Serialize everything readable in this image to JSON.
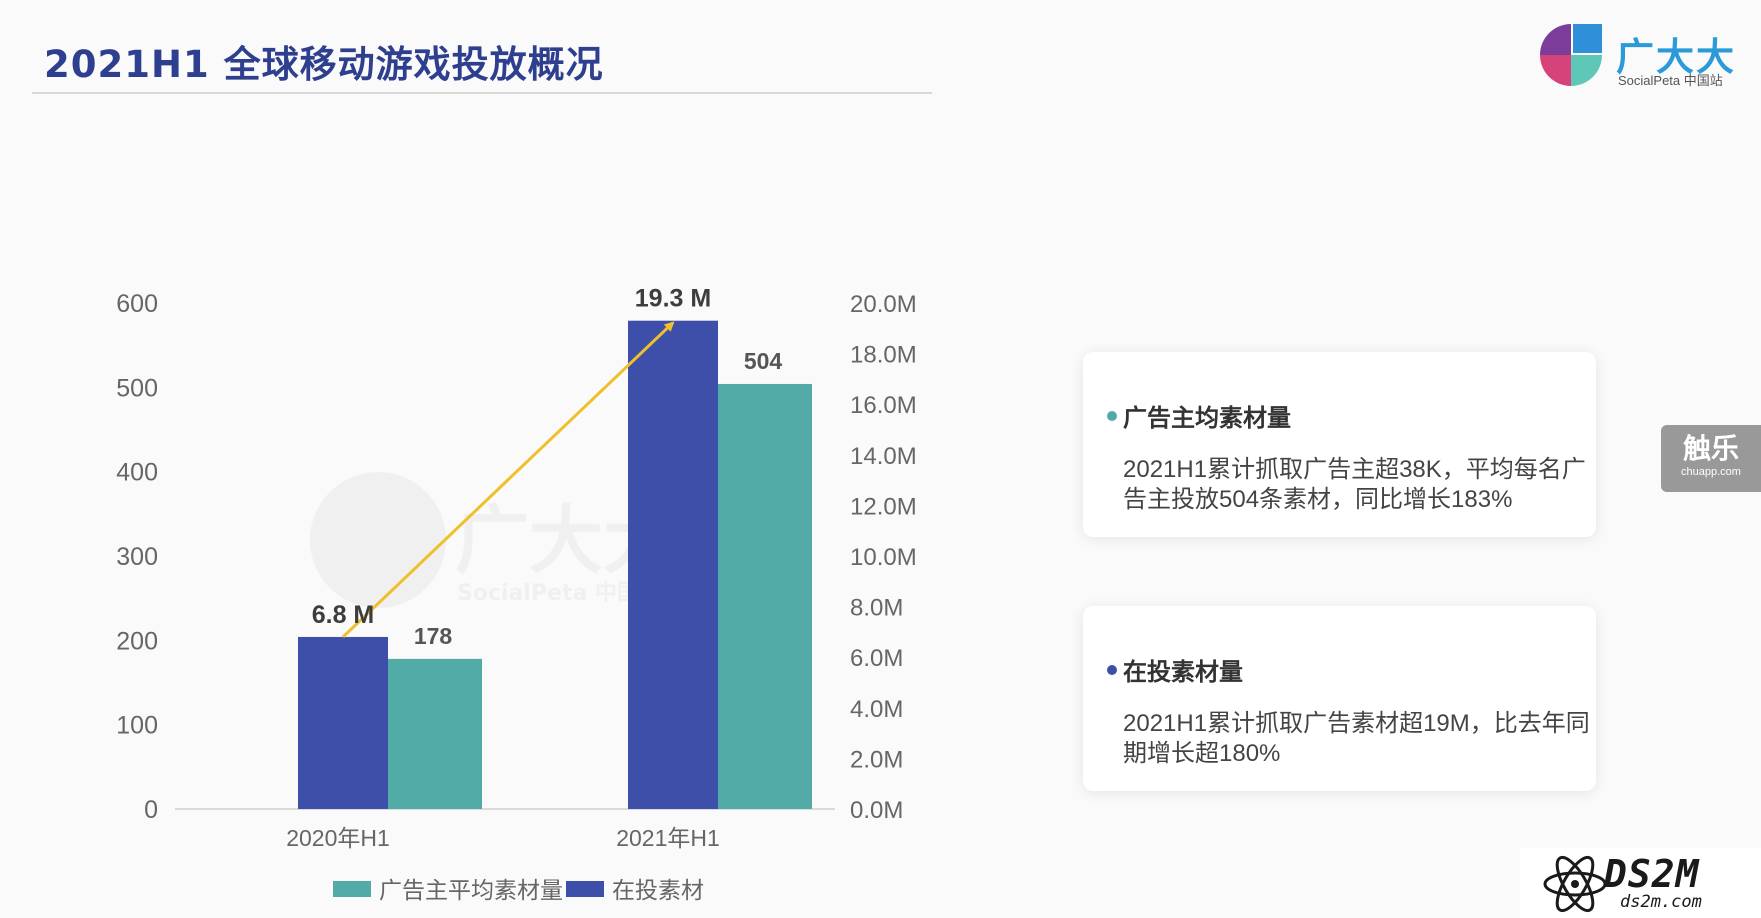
{
  "header": {
    "title": "2021H1 全球移动游戏投放概况"
  },
  "logo": {
    "name": "广大大",
    "sub": "SocialPeta 中国站"
  },
  "watermark": {
    "name": "广大大",
    "sub": "SocialPeta 中国站"
  },
  "colors": {
    "blue": "#3d4fa8",
    "teal": "#52aba7",
    "arrow": "#f0c02a",
    "title": "#2f3f8f"
  },
  "chart_data": {
    "type": "bar",
    "categories": [
      "2020年H1",
      "2021年H1"
    ],
    "series": [
      {
        "name": "在投素材",
        "axis": "right",
        "unit": "M",
        "values": [
          6.8,
          19.3
        ],
        "labels": [
          "6.8 M",
          "19.3 M"
        ],
        "color": "#3d4fa8"
      },
      {
        "name": "广告主平均素材量",
        "axis": "left",
        "values": [
          178,
          504
        ],
        "labels": [
          "178",
          "504"
        ],
        "color": "#52aba7"
      }
    ],
    "y_left": {
      "min": 0,
      "max": 600,
      "ticks": [
        "0",
        "100",
        "200",
        "300",
        "400",
        "500",
        "600"
      ]
    },
    "y_right": {
      "min": 0,
      "max": 20,
      "ticks": [
        "0.0M",
        "2.0M",
        "4.0M",
        "6.0M",
        "8.0M",
        "10.0M",
        "12.0M",
        "14.0M",
        "16.0M",
        "18.0M",
        "20.0M"
      ]
    },
    "legend": [
      "广告主平均素材量",
      "在投素材"
    ],
    "legend_position": "bottom",
    "grid": false
  },
  "cards": [
    {
      "title": "广告主均素材量",
      "dot_color": "#52aba7",
      "body": "2021H1累计抓取广告主超38K，平均每名广告主投放504条素材，同比增长183%"
    },
    {
      "title": "在投素材量",
      "dot_color": "#3d4fa8",
      "body": "2021H1累计抓取广告素材超19M，比去年同期增长超180%"
    }
  ],
  "side_badge": {
    "name": "触乐",
    "url": "chuapp.com"
  },
  "ds2m": {
    "name": "DS2M",
    "url": "ds2m.com"
  }
}
